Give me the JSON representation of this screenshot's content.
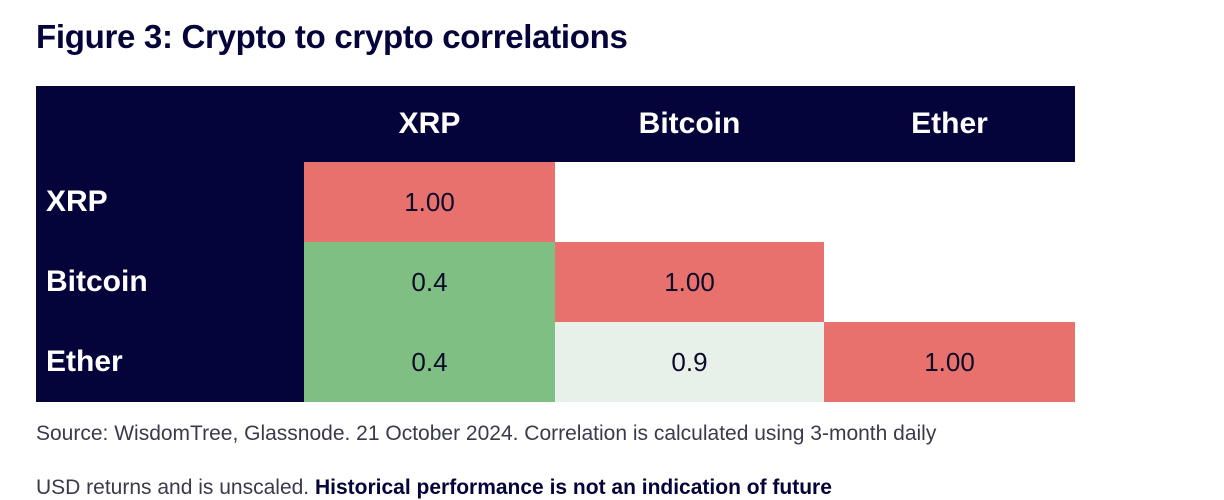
{
  "title": "Figure 3: Crypto to crypto correlations",
  "chart_data": {
    "type": "heatmap",
    "title": "Figure 3: Crypto to crypto correlations",
    "columns": [
      "XRP",
      "Bitcoin",
      "Ether"
    ],
    "rows": [
      "XRP",
      "Bitcoin",
      "Ether"
    ],
    "values": [
      [
        "1.00",
        null,
        null
      ],
      [
        "0.4",
        "1.00",
        null
      ],
      [
        "0.4",
        "0.9",
        "1.00"
      ]
    ],
    "cell_colors": [
      [
        "#e8716e",
        null,
        null
      ],
      [
        "#80bf84",
        "#e8716e",
        null
      ],
      [
        "#80bf84",
        "#e7f1ea",
        "#e8716e"
      ]
    ],
    "header_color": "#04033a"
  },
  "source": "Source: WisdomTree, Glassnode. 21 October 2024. Correlation is calculated using 3-month daily",
  "source_cont_plain": "USD returns and is unscaled.",
  "source_cont_bold": "Historical performance is not an indication of future"
}
